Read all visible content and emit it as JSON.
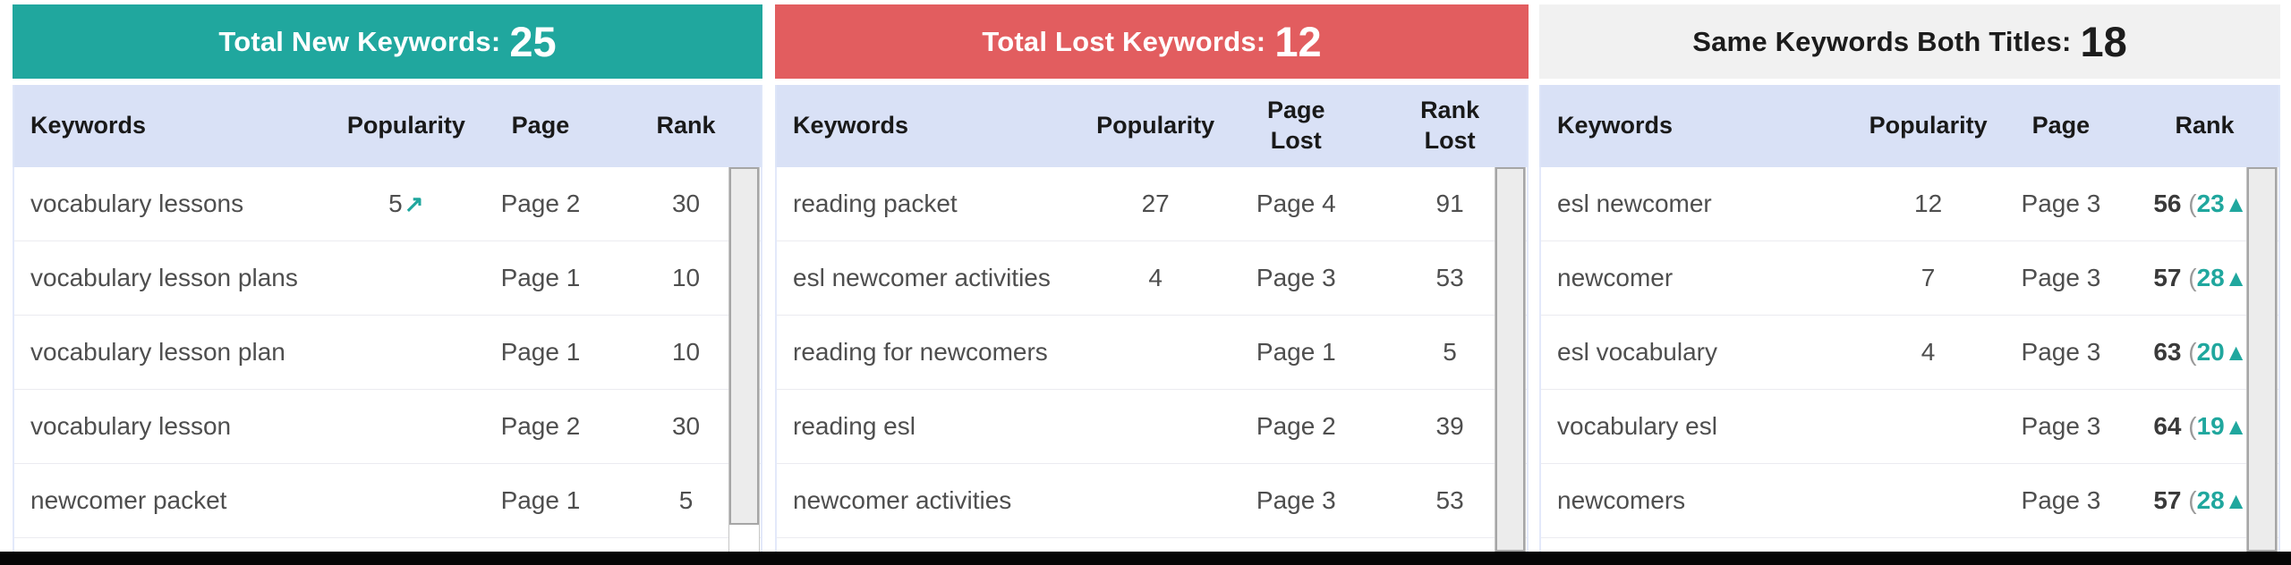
{
  "colors": {
    "teal_accent": "#20a79e",
    "red_accent": "#e25d5f",
    "same_header_bg": "#f1f1f1",
    "column_header_bg": "#d9e1f6"
  },
  "symbols": {
    "open": "(",
    "close": ")",
    "up_triangle": "▲",
    "trend_up_arrow": "↗"
  },
  "panels": [
    {
      "title": "Total New Keywords:",
      "count": "25",
      "columns": [
        "Keywords",
        "Popularity",
        "Page",
        "Rank"
      ],
      "rows": [
        {
          "keyword": "vocabulary lessons",
          "popularity": "5",
          "trend": "↗",
          "page": "Page 2",
          "rank": "30"
        },
        {
          "keyword": "vocabulary lesson plans",
          "popularity": "",
          "trend": "",
          "page": "Page 1",
          "rank": "10"
        },
        {
          "keyword": "vocabulary lesson plan",
          "popularity": "",
          "trend": "",
          "page": "Page 1",
          "rank": "10"
        },
        {
          "keyword": "vocabulary lesson",
          "popularity": "",
          "trend": "",
          "page": "Page 2",
          "rank": "30"
        },
        {
          "keyword": "newcomer packet",
          "popularity": "",
          "trend": "",
          "page": "Page 1",
          "rank": "5"
        }
      ]
    },
    {
      "title": "Total Lost Keywords:",
      "count": "12",
      "columns": [
        "Keywords",
        "Popularity",
        "Page Lost",
        "Rank Lost"
      ],
      "rows": [
        {
          "keyword": "reading packet",
          "popularity": "27",
          "page": "Page 4",
          "rank": "91"
        },
        {
          "keyword": "esl newcomer activities",
          "popularity": "4",
          "page": "Page 3",
          "rank": "53"
        },
        {
          "keyword": "reading for newcomers",
          "popularity": "",
          "page": "Page 1",
          "rank": "5"
        },
        {
          "keyword": "reading esl",
          "popularity": "",
          "page": "Page 2",
          "rank": "39"
        },
        {
          "keyword": "newcomer activities",
          "popularity": "",
          "page": "Page 3",
          "rank": "53"
        }
      ]
    },
    {
      "title": "Same Keywords Both Titles:",
      "count": "18",
      "columns": [
        "Keywords",
        "Popularity",
        "Page",
        "Rank"
      ],
      "rows": [
        {
          "keyword": "esl newcomer",
          "popularity": "12",
          "page": "Page 3",
          "rank": "56",
          "change": "23"
        },
        {
          "keyword": "newcomer",
          "popularity": "7",
          "page": "Page 3",
          "rank": "57",
          "change": "28"
        },
        {
          "keyword": "esl vocabulary",
          "popularity": "4",
          "page": "Page 3",
          "rank": "63",
          "change": "20"
        },
        {
          "keyword": "vocabulary esl",
          "popularity": "",
          "page": "Page 3",
          "rank": "64",
          "change": "19"
        },
        {
          "keyword": "newcomers",
          "popularity": "",
          "page": "Page 3",
          "rank": "57",
          "change": "28"
        }
      ]
    }
  ]
}
